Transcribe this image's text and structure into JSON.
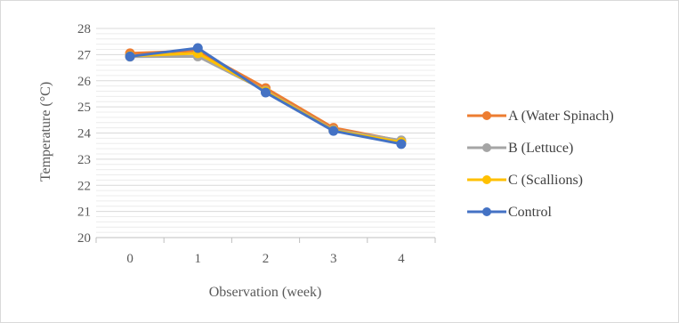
{
  "chart_data": {
    "type": "line",
    "title": "",
    "xlabel": "Observation (week)",
    "ylabel": "Temperature (°C)",
    "categories": [
      "0",
      "1",
      "2",
      "3",
      "4"
    ],
    "ylim": [
      20,
      28
    ],
    "y_ticks": [
      20,
      21,
      22,
      23,
      24,
      25,
      26,
      27,
      28
    ],
    "grid": true,
    "minor_grid": true,
    "legend_position": "right",
    "series": [
      {
        "name": "A (Water Spinach)",
        "color": "#ED7D31",
        "values": [
          27.05,
          27.15,
          25.72,
          24.2,
          23.7
        ]
      },
      {
        "name": "B (Lettuce)",
        "color": "#A5A5A5",
        "values": [
          26.92,
          26.93,
          25.62,
          24.12,
          23.72
        ]
      },
      {
        "name": "C (Scallions)",
        "color": "#FFC000",
        "values": [
          26.95,
          27.05,
          25.6,
          24.1,
          23.65
        ]
      },
      {
        "name": "Control",
        "color": "#4472C4",
        "values": [
          26.93,
          27.25,
          25.55,
          24.08,
          23.58
        ]
      }
    ]
  }
}
